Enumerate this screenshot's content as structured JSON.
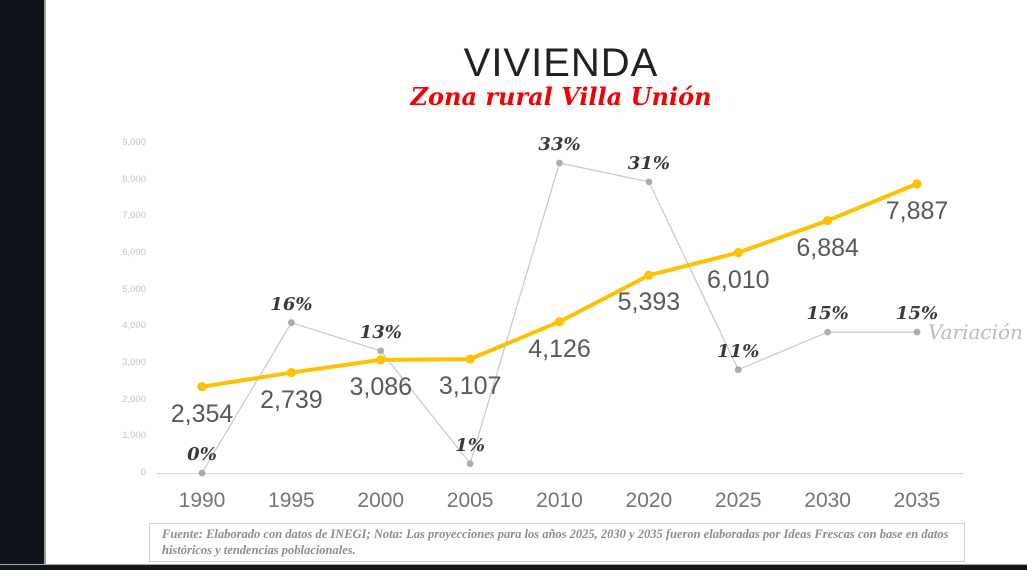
{
  "header": {
    "title": "VIVIENDA",
    "subtitle": "Zona rural Villa Unión"
  },
  "footer": {
    "text": "Fuente: Elaborado con datos de INEGI; Nota: Las proyecciones para los años 2025, 2030 y 2035 fueron elaboradas por Ideas Frescas con base en datos históricos y tendencias poblacionales."
  },
  "colors": {
    "vivienda_line": "#FFC000",
    "variacion_line": "#c8c8c8",
    "variacion_marker": "#adadad",
    "baseline": "#d9d9d9",
    "subtitle_red": "#f40000",
    "sidebar_dark": "#0f1219"
  },
  "chart_data": {
    "type": "line",
    "title": "VIVIENDA",
    "subtitle": "Zona rural Villa Unión",
    "categories": [
      "1990",
      "1995",
      "2000",
      "2005",
      "2010",
      "2020",
      "2025",
      "2030",
      "2035"
    ],
    "series": [
      {
        "name": "Vivienda",
        "values": [
          2354,
          2739,
          3086,
          3107,
          4126,
          5393,
          6010,
          6884,
          7887
        ],
        "labels": [
          "2,354",
          "2,739",
          "3,086",
          "3,107",
          "4,126",
          "5,393",
          "6,010",
          "6,884",
          "7,887"
        ],
        "color": "#FFC000"
      },
      {
        "name": "Variación",
        "values": [
          0,
          16,
          13,
          1,
          33,
          31,
          11,
          15,
          15
        ],
        "labels": [
          "0%",
          "16%",
          "13%",
          "1%",
          "33%",
          "31%",
          "11%",
          "15%",
          "15%"
        ],
        "color": "#c8c8c8"
      }
    ],
    "legend": "Variación",
    "legend_position": "right-of-last-variacion-point",
    "y_axis": {
      "min": 0,
      "max": 9000,
      "step": 1000,
      "tick_labels": [
        "0",
        "1,000",
        "2,000",
        "3,000",
        "4,000",
        "5,000",
        "6,000",
        "7,000",
        "8,000",
        "9,000"
      ]
    },
    "grid": false
  }
}
